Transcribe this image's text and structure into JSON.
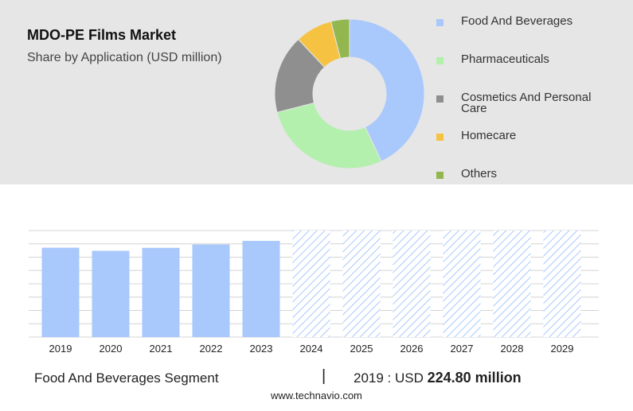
{
  "chart_data": [
    {
      "type": "pie",
      "title": "MDO-PE Films Market",
      "subtitle": "Share by Application (USD million)",
      "legend_placement": "right",
      "slices": [
        {
          "label": "Food And Beverages",
          "value": 43,
          "color": "#a9c8fb"
        },
        {
          "label": "Pharmaceuticals",
          "value": 28,
          "color": "#b3f0ad"
        },
        {
          "label": "Cosmetics And Personal Care",
          "value": 17,
          "color": "#8f8f8f"
        },
        {
          "label": "Homecare",
          "value": 8,
          "color": "#f5c242"
        },
        {
          "label": "Others",
          "value": 4,
          "color": "#93b74f"
        }
      ]
    },
    {
      "type": "bar",
      "categories": [
        "2019",
        "2020",
        "2021",
        "2022",
        "2023",
        "2024",
        "2025",
        "2026",
        "2027",
        "2028",
        "2029"
      ],
      "values": [
        224.8,
        217,
        224.5,
        233,
        242,
        268,
        268,
        268,
        268,
        268,
        268
      ],
      "forecast_from": "2024",
      "ylim": [
        0,
        268
      ],
      "grid": true,
      "bar_color": "#a9c8fb",
      "hatch_color": "#a9c8fb"
    }
  ],
  "footer": {
    "segment": "Food And Beverages Segment",
    "separator": "|",
    "year_label": "2019 : USD",
    "value": "224.80 million",
    "website": "www.technavio.com"
  }
}
